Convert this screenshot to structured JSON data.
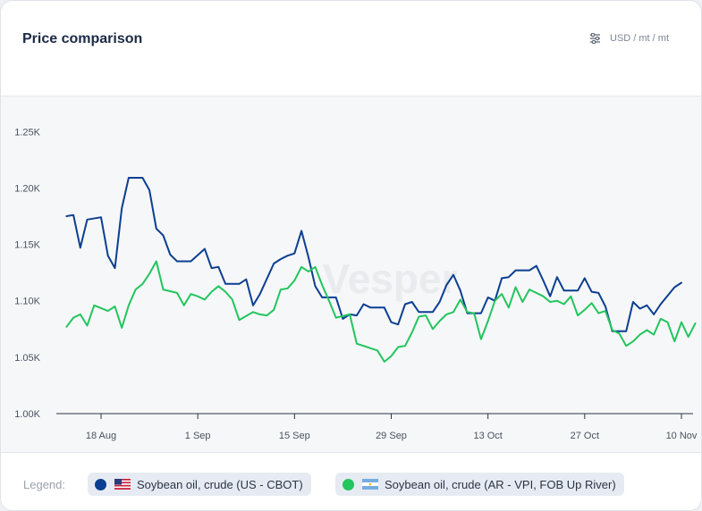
{
  "header": {
    "title": "Price comparison",
    "unit": "USD / mt / mt",
    "settings_icon": "sliders-icon"
  },
  "watermark": "Vesper",
  "legend": {
    "label": "Legend:",
    "items": [
      {
        "label": "Soybean oil, crude (US - CBOT)",
        "color": "#0b3f91",
        "flag": "us-flag-icon"
      },
      {
        "label": "Soybean oil, crude (AR - VPI, FOB Up River)",
        "color": "#22c55e",
        "flag": "ar-flag-icon"
      }
    ]
  },
  "chart_data": {
    "type": "line",
    "ylim": [
      1000,
      1270
    ],
    "yticks": [
      {
        "value": 1000,
        "label": "1.00K"
      },
      {
        "value": 1050,
        "label": "1.05K"
      },
      {
        "value": 1100,
        "label": "1.10K"
      },
      {
        "value": 1150,
        "label": "1.15K"
      },
      {
        "value": 1200,
        "label": "1.20K"
      },
      {
        "value": 1250,
        "label": "1.25K"
      }
    ],
    "xlim": [
      -1,
      87
    ],
    "xticks": [
      {
        "x": 4,
        "label": "18 Aug"
      },
      {
        "x": 18,
        "label": "1 Sep"
      },
      {
        "x": 32,
        "label": "15 Sep"
      },
      {
        "x": 46,
        "label": "29 Sep"
      },
      {
        "x": 60,
        "label": "13 Oct"
      },
      {
        "x": 74,
        "label": "27 Oct"
      },
      {
        "x": 88,
        "label": "10 Nov"
      }
    ],
    "series": [
      {
        "name": "Soybean oil, crude (US - CBOT)",
        "color": "#0b3f91",
        "points": [
          [
            -1,
            1175
          ],
          [
            0,
            1176
          ],
          [
            1,
            1147
          ],
          [
            2,
            1172
          ],
          [
            4,
            1174
          ],
          [
            5,
            1140
          ],
          [
            6,
            1129
          ],
          [
            7,
            1182
          ],
          [
            8,
            1209
          ],
          [
            10,
            1209
          ],
          [
            11,
            1198
          ],
          [
            12,
            1164
          ],
          [
            13,
            1158
          ],
          [
            14,
            1141
          ],
          [
            15,
            1135
          ],
          [
            17,
            1135
          ],
          [
            19,
            1146
          ],
          [
            20,
            1129
          ],
          [
            21,
            1130
          ],
          [
            22,
            1115
          ],
          [
            24,
            1115
          ],
          [
            25,
            1119
          ],
          [
            26,
            1096
          ],
          [
            27,
            1106
          ],
          [
            29,
            1133
          ],
          [
            30,
            1137
          ],
          [
            31,
            1140
          ],
          [
            32,
            1142
          ],
          [
            33,
            1162
          ],
          [
            34,
            1139
          ],
          [
            35,
            1113
          ],
          [
            36,
            1103
          ],
          [
            38,
            1103
          ],
          [
            39,
            1084
          ],
          [
            40,
            1088
          ],
          [
            41,
            1087
          ],
          [
            42,
            1097
          ],
          [
            43,
            1094
          ],
          [
            45,
            1094
          ],
          [
            46,
            1081
          ],
          [
            47,
            1079
          ],
          [
            48,
            1097
          ],
          [
            49,
            1099
          ],
          [
            50,
            1090
          ],
          [
            52,
            1090
          ],
          [
            53,
            1099
          ],
          [
            54,
            1114
          ],
          [
            55,
            1123
          ],
          [
            56,
            1109
          ],
          [
            57,
            1089
          ],
          [
            59,
            1089
          ],
          [
            60,
            1103
          ],
          [
            61,
            1100
          ],
          [
            62,
            1120
          ],
          [
            63,
            1121
          ],
          [
            64,
            1127
          ],
          [
            66,
            1127
          ],
          [
            67,
            1131
          ],
          [
            68,
            1118
          ],
          [
            69,
            1104
          ],
          [
            70,
            1121
          ],
          [
            71,
            1109
          ],
          [
            73,
            1109
          ],
          [
            74,
            1120
          ],
          [
            75,
            1108
          ],
          [
            76,
            1107
          ],
          [
            77,
            1095
          ],
          [
            78,
            1073
          ],
          [
            80,
            1073
          ],
          [
            81,
            1099
          ],
          [
            82,
            1093
          ],
          [
            83,
            1096
          ],
          [
            84,
            1088
          ],
          [
            85,
            1097
          ],
          [
            87,
            1112
          ],
          [
            88,
            1116
          ]
        ]
      },
      {
        "name": "Soybean oil, crude (AR - VPI, FOB Up River)",
        "color": "#22c55e",
        "points": [
          [
            -1,
            1077
          ],
          [
            0,
            1085
          ],
          [
            1,
            1088
          ],
          [
            2,
            1078
          ],
          [
            3,
            1096
          ],
          [
            5,
            1091
          ],
          [
            6,
            1095
          ],
          [
            7,
            1076
          ],
          [
            8,
            1096
          ],
          [
            9,
            1110
          ],
          [
            10,
            1115
          ],
          [
            11,
            1124
          ],
          [
            12,
            1135
          ],
          [
            13,
            1110
          ],
          [
            15,
            1107
          ],
          [
            16,
            1096
          ],
          [
            17,
            1106
          ],
          [
            18,
            1104
          ],
          [
            19,
            1101
          ],
          [
            20,
            1108
          ],
          [
            21,
            1113
          ],
          [
            22,
            1108
          ],
          [
            23,
            1101
          ],
          [
            24,
            1083
          ],
          [
            26,
            1090
          ],
          [
            27,
            1088
          ],
          [
            28,
            1087
          ],
          [
            29,
            1092
          ],
          [
            30,
            1110
          ],
          [
            31,
            1111
          ],
          [
            32,
            1118
          ],
          [
            33,
            1130
          ],
          [
            34,
            1126
          ],
          [
            35,
            1130
          ],
          [
            36,
            1114
          ],
          [
            37,
            1100
          ],
          [
            38,
            1085
          ],
          [
            40,
            1088
          ],
          [
            41,
            1062
          ],
          [
            42,
            1060
          ],
          [
            44,
            1056
          ],
          [
            45,
            1046
          ],
          [
            46,
            1051
          ],
          [
            47,
            1059
          ],
          [
            48,
            1060
          ],
          [
            49,
            1072
          ],
          [
            50,
            1086
          ],
          [
            51,
            1087
          ],
          [
            52,
            1075
          ],
          [
            53,
            1082
          ],
          [
            54,
            1088
          ],
          [
            55,
            1090
          ],
          [
            56,
            1101
          ],
          [
            57,
            1090
          ],
          [
            58,
            1089
          ],
          [
            59,
            1066
          ],
          [
            60,
            1082
          ],
          [
            61,
            1100
          ],
          [
            62,
            1106
          ],
          [
            63,
            1094
          ],
          [
            64,
            1112
          ],
          [
            65,
            1099
          ],
          [
            66,
            1110
          ],
          [
            67,
            1107
          ],
          [
            68,
            1104
          ],
          [
            69,
            1099
          ],
          [
            70,
            1100
          ],
          [
            71,
            1097
          ],
          [
            72,
            1104
          ],
          [
            73,
            1087
          ],
          [
            74,
            1092
          ],
          [
            75,
            1098
          ],
          [
            76,
            1089
          ],
          [
            77,
            1091
          ],
          [
            78,
            1074
          ],
          [
            79,
            1071
          ],
          [
            80,
            1060
          ],
          [
            81,
            1064
          ],
          [
            82,
            1070
          ],
          [
            83,
            1074
          ],
          [
            84,
            1070
          ],
          [
            85,
            1084
          ],
          [
            86,
            1081
          ],
          [
            87,
            1064
          ],
          [
            88,
            1081
          ],
          [
            89,
            1068
          ],
          [
            90,
            1080
          ]
        ]
      }
    ]
  }
}
